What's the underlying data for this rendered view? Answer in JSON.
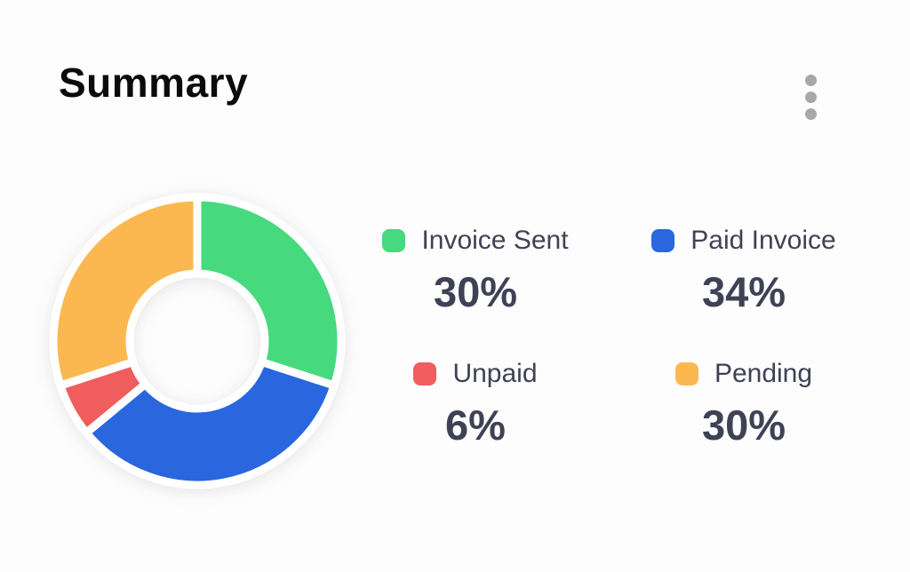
{
  "header": {
    "title": "Summary",
    "menu_icon": "kebab-menu-icon"
  },
  "chart_data": {
    "type": "pie",
    "variant": "donut",
    "title": "Summary",
    "direction": "clockwise",
    "start_angle_deg": 0,
    "inner_radius_ratio": 0.47,
    "gap_color": "#ffffff",
    "legend_position": "right",
    "legend_layout": "2x2-grid",
    "segments": [
      {
        "label": "Invoice Sent",
        "value": 30,
        "pct_display": "30%",
        "color": "#47d97e"
      },
      {
        "label": "Paid Invoice",
        "value": 34,
        "pct_display": "34%",
        "color": "#2a66dd"
      },
      {
        "label": "Unpaid",
        "value": 6,
        "pct_display": "6%",
        "color": "#ef5d5d"
      },
      {
        "label": "Pending",
        "value": 30,
        "pct_display": "30%",
        "color": "#fbb851"
      }
    ]
  },
  "colors": {
    "background": "#fdfdfd",
    "title_text": "#0b0b0e",
    "legend_text": "#3f4254",
    "percent_text": "#3e4254",
    "menu_dots": "#a8a8a8"
  }
}
